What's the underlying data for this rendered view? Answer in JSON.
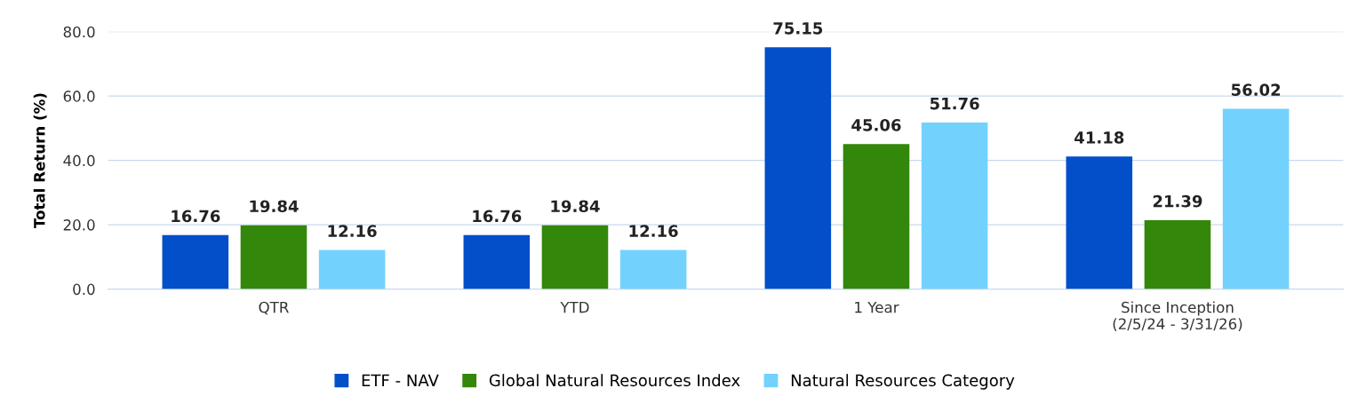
{
  "chart_data": {
    "type": "bar",
    "ylabel": "Total Return (%)",
    "categories": [
      "QTR",
      "YTD",
      "1 Year",
      "Since Inception\n(2/5/24 - 3/31/26)"
    ],
    "series": [
      {
        "name": "ETF - NAV",
        "color": "#034ec9",
        "values": [
          16.76,
          16.76,
          75.15,
          41.18
        ]
      },
      {
        "name": "Global Natural Resources Index",
        "color": "#33870b",
        "values": [
          19.84,
          19.84,
          45.06,
          21.39
        ]
      },
      {
        "name": "Natural Resources Category",
        "color": "#73d2fd",
        "values": [
          12.16,
          12.16,
          51.76,
          56.02
        ]
      }
    ],
    "ylim": [
      0,
      80
    ],
    "yticks": [
      {
        "value": 0,
        "label": "0.0"
      },
      {
        "value": 20,
        "label": "20.0"
      },
      {
        "value": 40,
        "label": "40.0"
      },
      {
        "value": 60,
        "label": "60.0"
      },
      {
        "value": 80,
        "label": "80.0"
      }
    ],
    "grid": "y",
    "legend": "bottom",
    "data_labels": true
  }
}
